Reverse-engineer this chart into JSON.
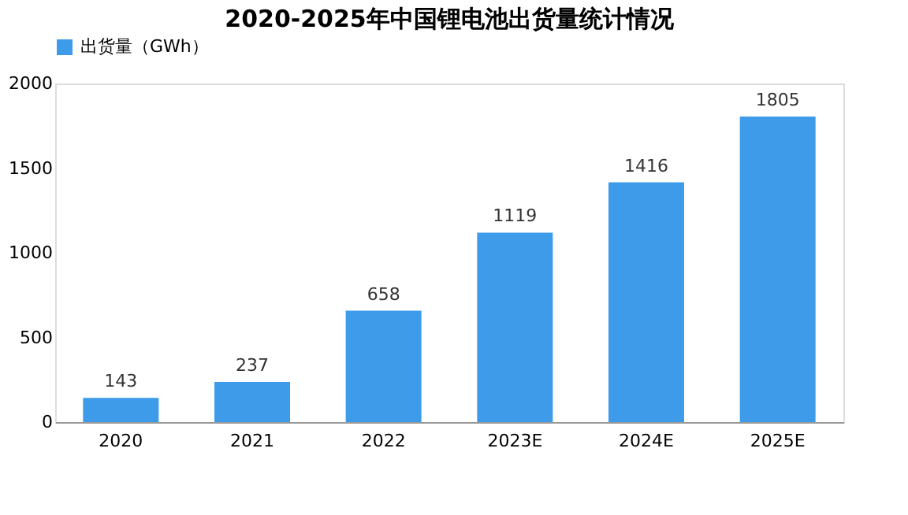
{
  "chart_data": {
    "type": "bar",
    "title": "2020-2025年中国锂电池出货量统计情况",
    "categories": [
      "2020",
      "2021",
      "2022",
      "2023E",
      "2024E",
      "2025E"
    ],
    "series": [
      {
        "name": "出货量（GWh）",
        "color": "#3d9be9",
        "values": [
          143,
          237,
          658,
          1119,
          1416,
          1805
        ]
      }
    ],
    "ylim": [
      0,
      2000
    ],
    "yticks": [
      0,
      500,
      1000,
      1500,
      2000
    ],
    "grid": false,
    "legend": "top",
    "data_labels": true
  }
}
